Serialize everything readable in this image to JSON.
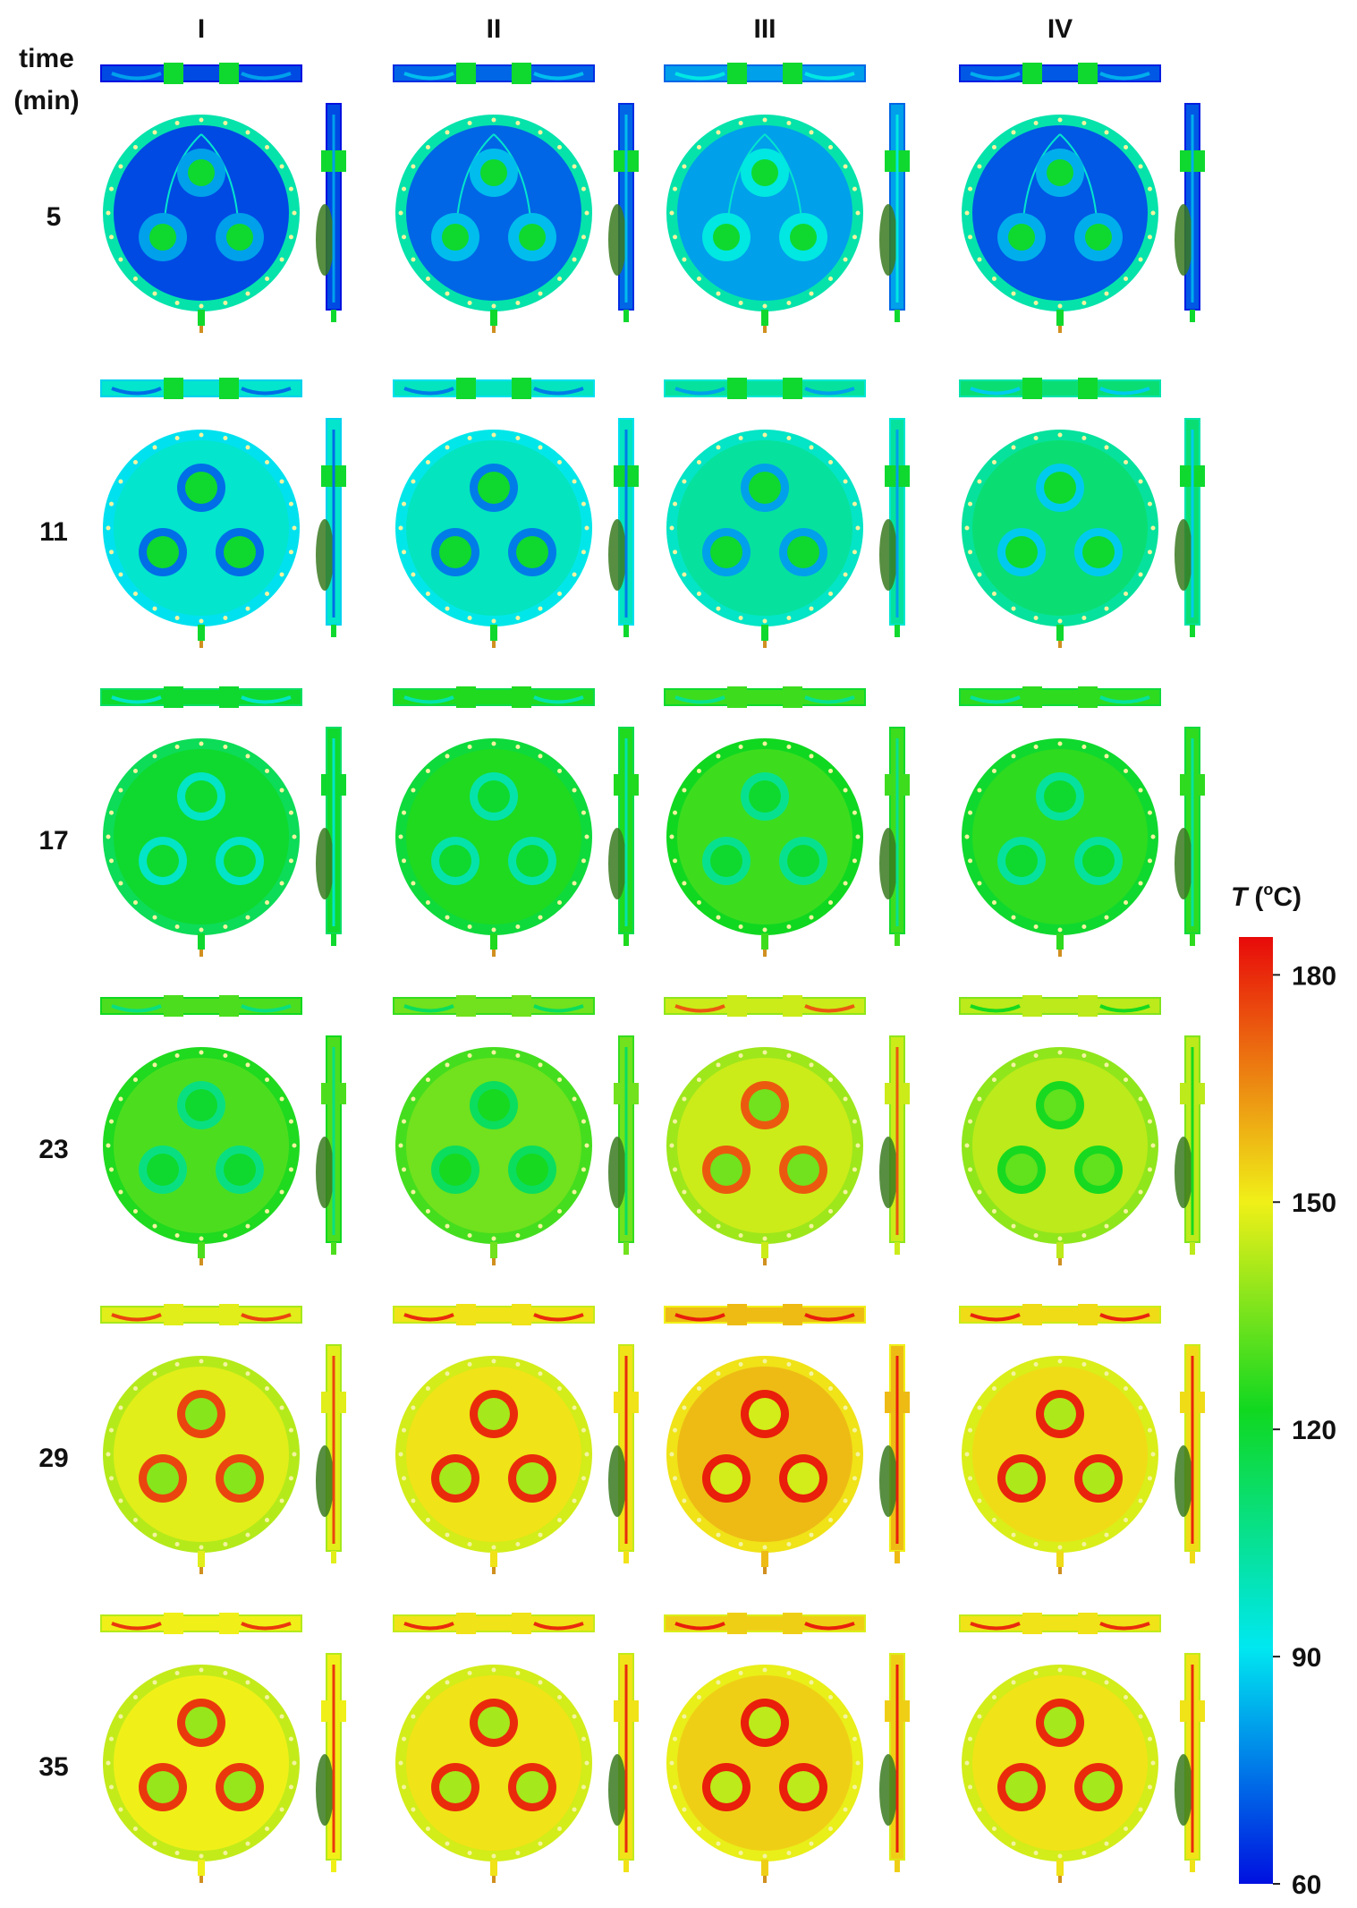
{
  "columns": [
    "I",
    "II",
    "III",
    "IV"
  ],
  "time_header": [
    "time",
    "(min)"
  ],
  "rows": [
    {
      "time": "5",
      "levels": [
        68,
        72,
        80,
        70
      ]
    },
    {
      "time": "11",
      "levels": [
        95,
        97,
        102,
        108
      ]
    },
    {
      "time": "17",
      "levels": [
        118,
        122,
        126,
        124
      ]
    },
    {
      "time": "23",
      "levels": [
        128,
        133,
        145,
        143
      ]
    },
    {
      "time": "29",
      "levels": [
        148,
        152,
        158,
        153
      ]
    },
    {
      "time": "35",
      "levels": [
        150,
        152,
        155,
        152
      ]
    }
  ],
  "colorbar": {
    "title_italic": "T",
    "title_unit": "(",
    "title_sup": "o",
    "title_end": "C)",
    "ticks": [
      "180",
      "150",
      "120",
      "90",
      "60"
    ],
    "tick_values": [
      180,
      150,
      120,
      90,
      60
    ],
    "min": 60,
    "max": 185,
    "colors": [
      "#0018e8",
      "#00e8f0",
      "#22e02a",
      "#f0f020",
      "#e81010"
    ]
  }
}
